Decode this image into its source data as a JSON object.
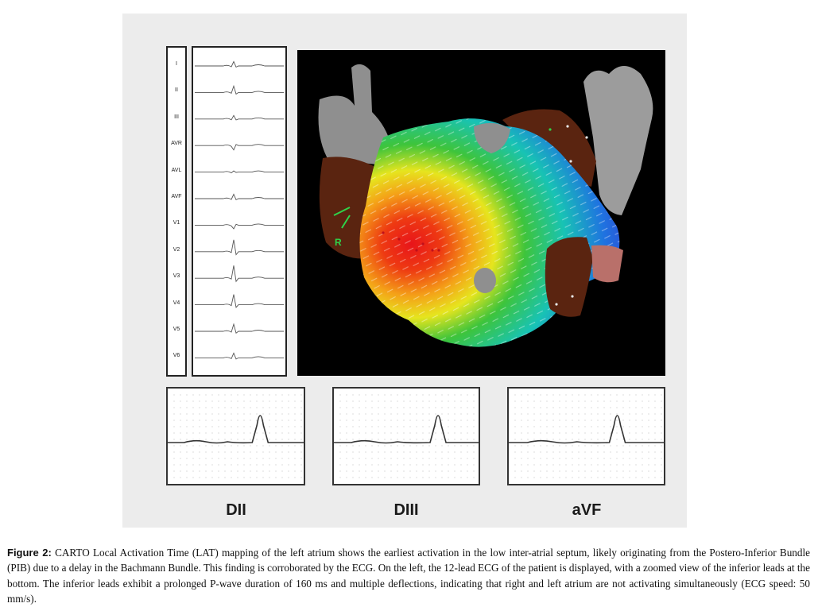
{
  "ecg": {
    "leads": [
      "I",
      "II",
      "III",
      "AVR",
      "AVL",
      "AVF",
      "V1",
      "V2",
      "V3",
      "V4",
      "V5",
      "V6"
    ]
  },
  "map": {
    "marker_label": "R"
  },
  "zoomed_leads": [
    {
      "label": "DII"
    },
    {
      "label": "DIII"
    },
    {
      "label": "aVF"
    }
  ],
  "caption": {
    "label": "Figure 2:",
    "text": "CARTO Local Activation Time (LAT) mapping of the left atrium shows the earliest activation in the low inter-atrial septum, likely originating from the Postero-Inferior Bundle (PIB) due to a delay in the Bachmann Bundle. This finding is corroborated by the ECG. On the left, the 12-lead ECG of the patient is displayed, with a zoomed view of the inferior leads at the bottom. The inferior leads exhibit a prolonged P-wave duration of 160 ms and multiple deflections, indicating that right and left atrium are not activating simultaneously (ECG speed: 50 mm/s)."
  },
  "colors": {
    "panel_bg": "#ececec",
    "map_bg": "#000000",
    "trace": "#555555",
    "anatomy_grey": "#8f8f8f",
    "scar_brown": "#5a2410"
  }
}
